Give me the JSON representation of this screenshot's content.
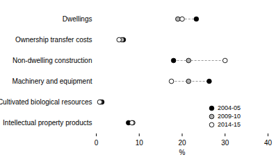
{
  "chart_data": {
    "type": "dot",
    "orientation": "horizontal",
    "categories": [
      "Dwellings",
      "Ownership transfer costs",
      "Non-dwelling construction",
      "Machinery and equipment",
      "Cultivated biological resources",
      "Intellectual property products"
    ],
    "series": [
      {
        "name": "2004-05",
        "color": "#000000",
        "marker": "circle",
        "values": [
          23.3,
          6.3,
          18.0,
          26.3,
          1.3,
          7.5
        ]
      },
      {
        "name": "2009-10",
        "color": "#b3b3b3",
        "marker": "circle",
        "values": [
          19.0,
          6.0,
          21.5,
          21.5,
          1.0,
          8.5
        ]
      },
      {
        "name": "2014-15",
        "color": "#ffffff",
        "marker": "circle",
        "values": [
          20.0,
          5.3,
          30.0,
          17.5,
          0.8,
          8.3
        ]
      }
    ],
    "x_label": "%",
    "xlim": [
      0,
      40
    ],
    "xticks": [
      0,
      10,
      20,
      30,
      40
    ],
    "legend": "bottom-right",
    "grid": false
  }
}
